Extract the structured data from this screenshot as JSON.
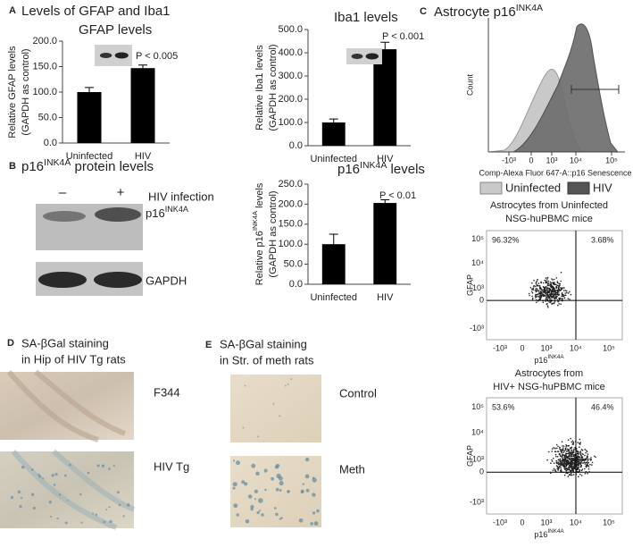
{
  "chart_data": [
    {
      "type": "bar",
      "title": "GFAP levels",
      "categories": [
        "Uninfected",
        "HIV"
      ],
      "values": [
        100,
        147
      ],
      "errors": [
        9,
        6
      ],
      "color": "#000000",
      "ylim": [
        0,
        200
      ],
      "yticks": [
        {
          "value": 0,
          "label": "0.0"
        },
        {
          "value": 50,
          "label": "50.0"
        },
        {
          "value": 100,
          "label": "100.0"
        },
        {
          "value": 150,
          "label": "150.0"
        },
        {
          "value": 200,
          "label": "200.0"
        }
      ],
      "ylabel": [
        "Relative GFAP levels",
        "(GAPDH as control)"
      ],
      "annotation": "P < 0.005"
    },
    {
      "type": "bar",
      "title": "Iba1 levels",
      "categories": [
        "Uninfected",
        "HIV"
      ],
      "values": [
        100,
        415
      ],
      "errors": [
        15,
        30
      ],
      "color": "#000000",
      "ylim": [
        0,
        500
      ],
      "yticks": [
        {
          "value": 0,
          "label": "0.0"
        },
        {
          "value": 100,
          "label": "100.0"
        },
        {
          "value": 200,
          "label": "200.0"
        },
        {
          "value": 300,
          "label": "300.0"
        },
        {
          "value": 400,
          "label": "400.0"
        },
        {
          "value": 500,
          "label": "500.0"
        }
      ],
      "ylabel": [
        "Relative Iba1 levels",
        "(GAPDH as control)"
      ],
      "annotation": "P < 0.001"
    },
    {
      "type": "bar",
      "title": {
        "text": "p16",
        "sup": "INK4A",
        "after": " levels"
      },
      "categories": [
        "Uninfected",
        "HIV"
      ],
      "values": [
        100,
        203
      ],
      "errors": [
        25,
        8
      ],
      "color": "#000000",
      "ylim": [
        0,
        250
      ],
      "yticks": [
        {
          "value": 0,
          "label": "0.0"
        },
        {
          "value": 50,
          "label": "50.0"
        },
        {
          "value": 100,
          "label": "100.0"
        },
        {
          "value": 150,
          "label": "150.0"
        },
        {
          "value": 200,
          "label": "200.0"
        },
        {
          "value": 250,
          "label": "250.0"
        }
      ],
      "ylabel": [
        {
          "text": "Relative p16",
          "sup": "INK4A",
          "after": " levels"
        },
        "(GAPDH as control)"
      ],
      "annotation": "P < 0.01"
    }
  ],
  "panel_a": {
    "letter": "A",
    "title": "Levels of GFAP and Iba1"
  },
  "panel_b": {
    "letter": "B",
    "title": {
      "text": "p16",
      "sup": "INK4A",
      "after": " protein levels"
    },
    "lanes": [
      "–",
      "+"
    ],
    "lane_label": "HIV infection",
    "band_1": {
      "text": "p16",
      "sup": "INK4A"
    },
    "band_2": "GAPDH"
  },
  "panel_c": {
    "letter": "C",
    "title": {
      "text": "Astrocyte p16",
      "sup": "INK4A"
    },
    "histogram": {
      "ylabel": "Count",
      "xlabel": "Comp-Alexa Fluor 647-A::p16 Senescence",
      "xticks": [
        "-10³",
        "0",
        "10³",
        "10⁴",
        "10⁵"
      ],
      "legend": [
        "Uninfected",
        "HIV"
      ]
    },
    "scatter_ticks_x": [
      "-10³",
      "0",
      "10³",
      "10⁴",
      "10⁵"
    ],
    "scatter_ticks_y": [
      "10⁵",
      "10⁴",
      "10³",
      "0",
      "-10³"
    ],
    "scatters": [
      {
        "title": [
          "Astrocytes from Uninfected",
          "NSG-huPBMC mice"
        ],
        "left": "96.32%",
        "right": "3.68%",
        "xlabel": {
          "text": "p16",
          "sup": "INK4A"
        },
        "ylabel": "GFAP"
      },
      {
        "title": [
          "Astrocytes from",
          "HIV+ NSG-huPBMC mice"
        ],
        "left": "53.6%",
        "right": "46.4%",
        "xlabel": {
          "text": "p16",
          "sup": "INK4A"
        },
        "ylabel": "GFAP"
      }
    ]
  },
  "panel_d": {
    "letter": "D",
    "title": [
      "SA-βGal staining",
      "in Hip of HIV Tg rats"
    ],
    "images": [
      "F344",
      "HIV Tg"
    ]
  },
  "panel_e": {
    "letter": "E",
    "title": [
      "SA-βGal staining",
      "in Str. of meth rats"
    ],
    "images": [
      "Control",
      "Meth"
    ]
  }
}
